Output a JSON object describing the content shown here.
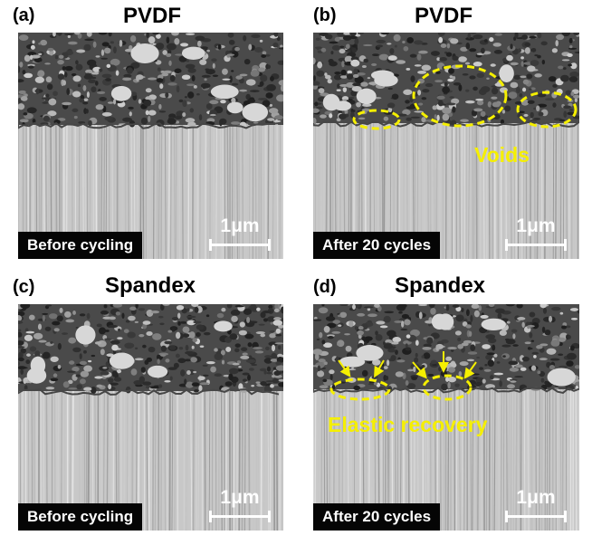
{
  "panels": [
    {
      "id": "a",
      "label": "(a)",
      "title": "PVDF",
      "caption": "Before cycling",
      "scale": "1μm"
    },
    {
      "id": "b",
      "label": "(b)",
      "title": "PVDF",
      "caption": "After 20 cycles",
      "scale": "1μm",
      "annotation": "Voids"
    },
    {
      "id": "c",
      "label": "(c)",
      "title": "Spandex",
      "caption": "Before cycling",
      "scale": "1μm"
    },
    {
      "id": "d",
      "label": "(d)",
      "title": "Spandex",
      "caption": "After 20 cycles",
      "scale": "1μm",
      "annotation": "Elastic recovery"
    }
  ],
  "colors": {
    "annotation": "#f5ef00",
    "caption_bg": "#050505",
    "electrode": "#4a4a4a",
    "substrate": "#c8c8c8"
  }
}
